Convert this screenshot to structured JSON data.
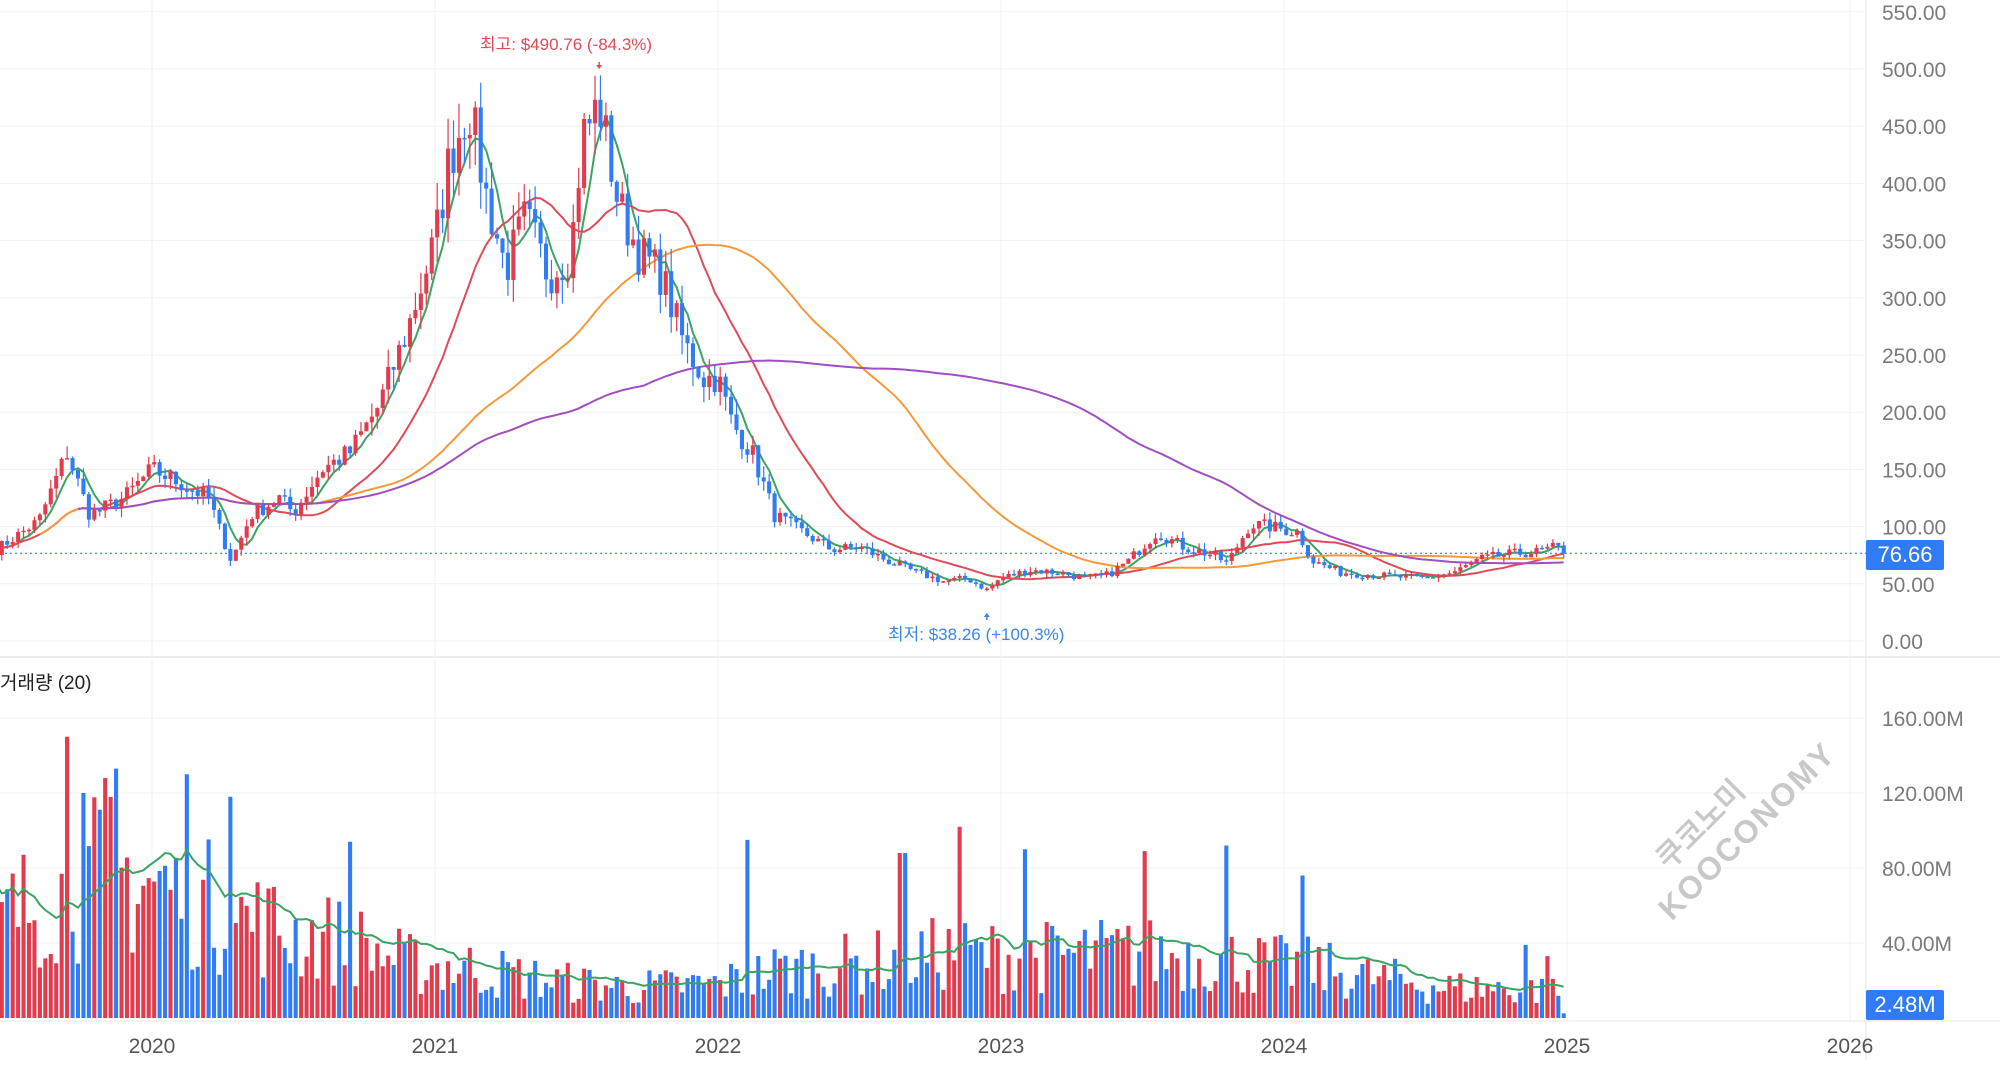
{
  "chart_data": [
    {
      "type": "candlestick",
      "panel": "price",
      "y_ticks": [
        "550.00",
        "500.00",
        "450.00",
        "400.00",
        "350.00",
        "300.00",
        "250.00",
        "200.00",
        "150.00",
        "100.00",
        "50.00",
        "0.00"
      ],
      "ylim": [
        0,
        560
      ],
      "x_ticks": [
        "2020",
        "2021",
        "2022",
        "2023",
        "2024",
        "2025",
        "2026"
      ],
      "x_tick_years": [
        2020,
        2021,
        2022,
        2023,
        2024,
        2025,
        2026
      ],
      "last_price": "76.66",
      "last_price_value": 76.66,
      "annotations": {
        "high": "최고: $490.76 (-84.3%)",
        "high_value": 490.76,
        "high_date": 2021.58,
        "low": "최저: $38.26 (+100.3%)",
        "low_value": 38.26,
        "low_date": 2022.95
      },
      "anchors": [
        [
          2019.45,
          80
        ],
        [
          2019.6,
          105
        ],
        [
          2019.7,
          165
        ],
        [
          2019.78,
          110
        ],
        [
          2019.9,
          125
        ],
        [
          2020.0,
          150
        ],
        [
          2020.1,
          138
        ],
        [
          2020.2,
          125
        ],
        [
          2020.25,
          90
        ],
        [
          2020.28,
          70
        ],
        [
          2020.35,
          110
        ],
        [
          2020.45,
          125
        ],
        [
          2020.5,
          112
        ],
        [
          2020.6,
          150
        ],
        [
          2020.7,
          165
        ],
        [
          2020.8,
          205
        ],
        [
          2020.9,
          270
        ],
        [
          2021.0,
          350
        ],
        [
          2021.05,
          420
        ],
        [
          2021.12,
          470
        ],
        [
          2021.18,
          390
        ],
        [
          2021.25,
          325
        ],
        [
          2021.32,
          370
        ],
        [
          2021.4,
          320
        ],
        [
          2021.48,
          340
        ],
        [
          2021.52,
          440
        ],
        [
          2021.58,
          470
        ],
        [
          2021.65,
          380
        ],
        [
          2021.72,
          340
        ],
        [
          2021.8,
          320
        ],
        [
          2021.88,
          260
        ],
        [
          2021.95,
          230
        ],
        [
          2022.0,
          230
        ],
        [
          2022.05,
          190
        ],
        [
          2022.12,
          165
        ],
        [
          2022.2,
          110
        ],
        [
          2022.3,
          95
        ],
        [
          2022.4,
          80
        ],
        [
          2022.5,
          82
        ],
        [
          2022.6,
          70
        ],
        [
          2022.7,
          60
        ],
        [
          2022.8,
          52
        ],
        [
          2022.88,
          55
        ],
        [
          2022.95,
          45
        ],
        [
          2023.0,
          55
        ],
        [
          2023.1,
          62
        ],
        [
          2023.2,
          60
        ],
        [
          2023.3,
          55
        ],
        [
          2023.38,
          58
        ],
        [
          2023.45,
          70
        ],
        [
          2023.55,
          95
        ],
        [
          2023.65,
          82
        ],
        [
          2023.75,
          75
        ],
        [
          2023.8,
          68
        ],
        [
          2023.88,
          102
        ],
        [
          2023.95,
          100
        ],
        [
          2024.05,
          95
        ],
        [
          2024.1,
          70
        ],
        [
          2024.2,
          60
        ],
        [
          2024.3,
          58
        ],
        [
          2024.4,
          56
        ],
        [
          2024.5,
          55
        ],
        [
          2024.6,
          60
        ],
        [
          2024.7,
          72
        ],
        [
          2024.8,
          76
        ],
        [
          2024.9,
          78
        ],
        [
          2024.96,
          82
        ],
        [
          2025.0,
          76.66
        ]
      ],
      "moving_averages": [
        {
          "color": "#3aa463",
          "period_weeks": 5
        },
        {
          "color": "#e04b57",
          "period_weeks": 20
        },
        {
          "color": "#f49a3b",
          "period_weeks": 60
        },
        {
          "color": "#a04ec0",
          "period_weeks": 120
        }
      ],
      "up_color": "#e23b4d",
      "down_color": "#2f7cf6"
    },
    {
      "type": "bar",
      "panel": "volume",
      "title": "거래량 (20)",
      "y_ticks": [
        "160.00M",
        "120.00M",
        "80.00M",
        "40.00M"
      ],
      "ylim": [
        0,
        175
      ],
      "last_volume": "2.48M",
      "volume_ma_color": "#3aa463",
      "level_anchors": [
        [
          2019.45,
          55
        ],
        [
          2019.7,
          80
        ],
        [
          2019.85,
          85
        ],
        [
          2020.0,
          80
        ],
        [
          2020.3,
          60
        ],
        [
          2020.5,
          50
        ],
        [
          2020.7,
          45
        ],
        [
          2020.9,
          32
        ],
        [
          2021.1,
          30
        ],
        [
          2021.4,
          22
        ],
        [
          2021.7,
          18
        ],
        [
          2022.0,
          20
        ],
        [
          2022.2,
          28
        ],
        [
          2022.5,
          32
        ],
        [
          2022.8,
          38
        ],
        [
          2023.1,
          36
        ],
        [
          2023.4,
          38
        ],
        [
          2023.7,
          37
        ],
        [
          2023.9,
          32
        ],
        [
          2024.1,
          30
        ],
        [
          2024.3,
          24
        ],
        [
          2024.6,
          18
        ],
        [
          2024.9,
          17
        ],
        [
          2025.0,
          14
        ]
      ],
      "spikes": [
        [
          2019.7,
          150
        ],
        [
          2019.75,
          120
        ],
        [
          2019.83,
          128
        ],
        [
          2019.88,
          133
        ],
        [
          2020.12,
          130
        ],
        [
          2020.28,
          118
        ],
        [
          2020.7,
          94
        ],
        [
          2022.1,
          95
        ],
        [
          2022.65,
          88
        ],
        [
          2022.85,
          102
        ],
        [
          2023.09,
          90
        ],
        [
          2023.5,
          89
        ],
        [
          2023.8,
          92
        ],
        [
          2024.07,
          76
        ],
        [
          2024.85,
          39
        ],
        [
          2024.93,
          33
        ]
      ]
    }
  ],
  "watermark": {
    "line1": "쿠코노미",
    "line2": "KOOCONOMY"
  }
}
